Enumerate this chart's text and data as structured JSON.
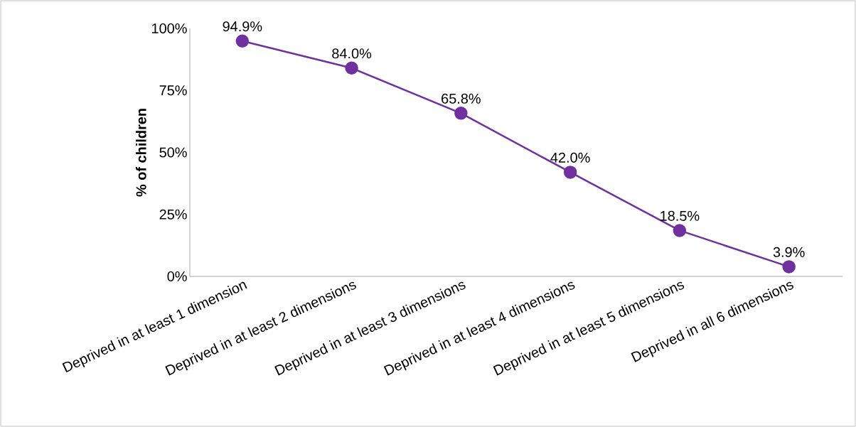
{
  "chart_data": {
    "type": "line",
    "ylabel": "% of children",
    "categories": [
      "Deprived in at least 1 dimension",
      "Deprived in at least 2 dimensions",
      "Deprived in at least 3 dimensions",
      "Deprived in at least 4 dimensions",
      "Deprived in at least 5 dimensions",
      "Deprived in all 6 dimensions"
    ],
    "values": [
      94.9,
      84.0,
      65.8,
      42.0,
      18.5,
      3.9
    ],
    "value_labels": [
      "94.9%",
      "84.0%",
      "65.8%",
      "42.0%",
      "18.5%",
      "3.9%"
    ],
    "color": "#7030a0",
    "marker": "circle",
    "line_style": "solid",
    "ylim": [
      0,
      100
    ],
    "yticks": [
      {
        "value": 0,
        "label": "0%"
      },
      {
        "value": 25,
        "label": "25%"
      },
      {
        "value": 50,
        "label": "50%"
      },
      {
        "value": 75,
        "label": "75%"
      },
      {
        "value": 100,
        "label": "100%"
      }
    ],
    "grid": false
  }
}
